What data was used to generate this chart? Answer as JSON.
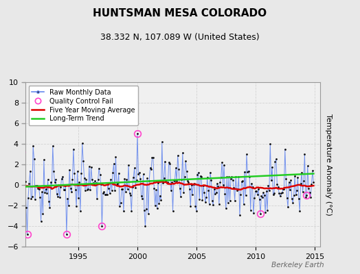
{
  "title": "HUNTSMAN MESA COLORADO",
  "subtitle": "38.332 N, 107.089 W (United States)",
  "ylabel": "Temperature Anomaly (°C)",
  "watermark": "Berkeley Earth",
  "xlim": [
    1990.5,
    2015.5
  ],
  "ylim": [
    -6,
    10
  ],
  "yticks": [
    -6,
    -4,
    -2,
    0,
    2,
    4,
    6,
    8,
    10
  ],
  "xticks": [
    1995,
    2000,
    2005,
    2010,
    2015
  ],
  "fig_bg_color": "#e8e8e8",
  "plot_bg_color": "#f0f0f0",
  "raw_line_color": "#6688ee",
  "raw_marker_color": "#111111",
  "qc_color": "#ff44cc",
  "moving_avg_color": "#dd0000",
  "trend_color": "#22cc22",
  "grid_color": "#cccccc",
  "title_fontsize": 11,
  "subtitle_fontsize": 9,
  "tick_fontsize": 8,
  "ylabel_fontsize": 8
}
